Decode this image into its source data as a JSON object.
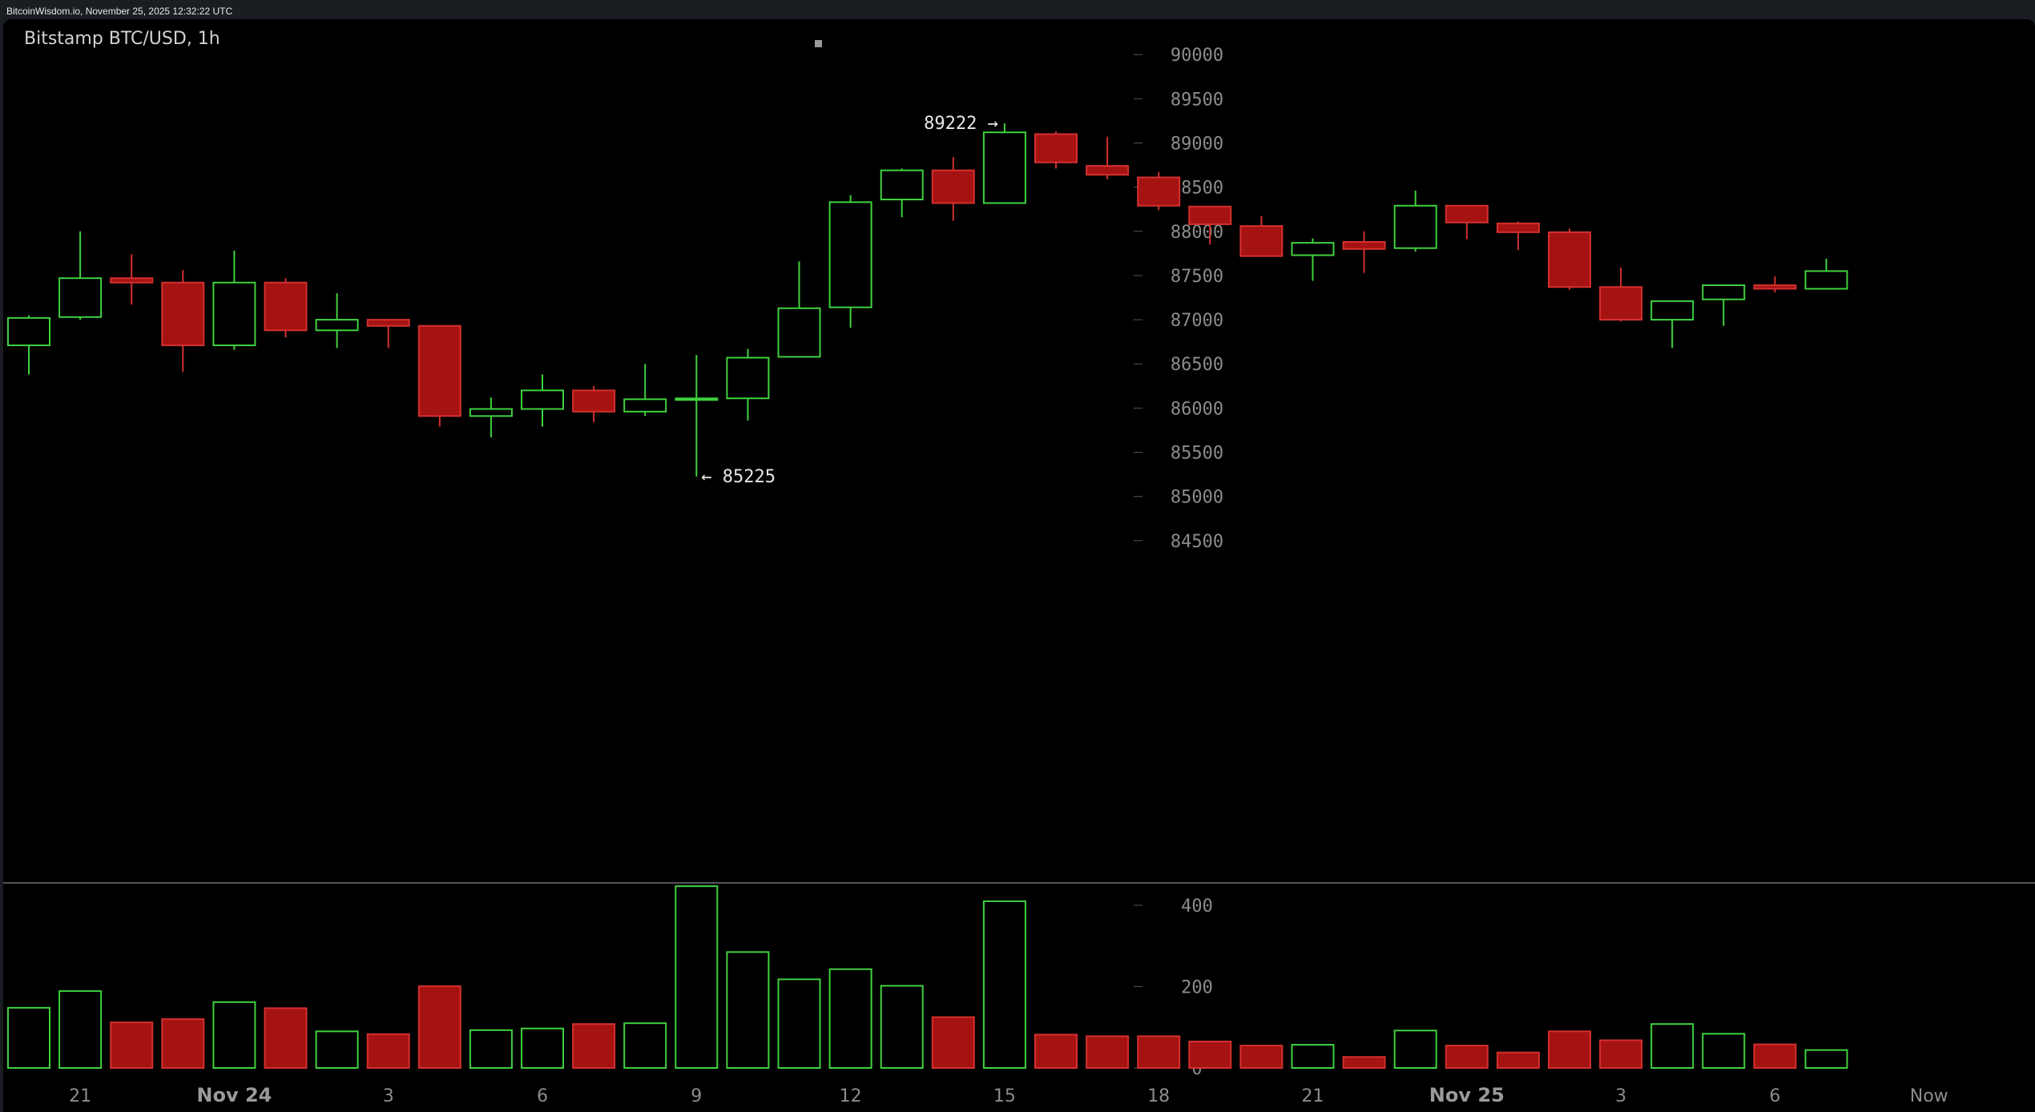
{
  "header": {
    "timestamp": "BitcoinWisdom.io, November 25, 2025 12:32:22 UTC"
  },
  "colors": {
    "background": "#000000",
    "up": "#3fd13f",
    "down": "#a51212",
    "down_edge": "#d43030",
    "axis_text": "#8c8c8c",
    "separator": "#555555"
  },
  "chart_data": {
    "type": "candlestick",
    "title": "Bitstamp BTC/USD, 1h",
    "price_axis": {
      "ylim": [
        84000,
        90400
      ],
      "ticks": [
        84500,
        85000,
        85500,
        86000,
        86500,
        87000,
        87500,
        88000,
        88500,
        89000,
        89500,
        90000
      ],
      "tick_labels": [
        "84500",
        "85000",
        "85500",
        "86000",
        "86500",
        "87000",
        "87500",
        "88000",
        "88500",
        "89000",
        "89500",
        "90000"
      ]
    },
    "volume_axis": {
      "ylim": [
        0,
        470
      ],
      "ticks": [
        0,
        200,
        400
      ],
      "tick_labels": [
        "0",
        "200",
        "400"
      ]
    },
    "x_labels": [
      {
        "at": 1,
        "text": "21",
        "kind": "hour"
      },
      {
        "at": 4,
        "text": "Nov 24",
        "kind": "day"
      },
      {
        "at": 7,
        "text": "3",
        "kind": "hour"
      },
      {
        "at": 10,
        "text": "6",
        "kind": "hour"
      },
      {
        "at": 13,
        "text": "9",
        "kind": "hour"
      },
      {
        "at": 16,
        "text": "12",
        "kind": "hour"
      },
      {
        "at": 19,
        "text": "15",
        "kind": "hour"
      },
      {
        "at": 22,
        "text": "18",
        "kind": "hour"
      },
      {
        "at": 25,
        "text": "21",
        "kind": "hour"
      },
      {
        "at": 28,
        "text": "Nov 25",
        "kind": "day"
      },
      {
        "at": 31,
        "text": "3",
        "kind": "hour"
      },
      {
        "at": 34,
        "text": "6",
        "kind": "hour"
      },
      {
        "at": 37,
        "text": "Now",
        "kind": "now"
      }
    ],
    "candles": [
      {
        "o": 86710,
        "h": 87050,
        "l": 86380,
        "c": 87020,
        "v": 148
      },
      {
        "o": 87030,
        "h": 88000,
        "l": 87000,
        "c": 87470,
        "v": 189
      },
      {
        "o": 87470,
        "h": 87740,
        "l": 87170,
        "c": 87420,
        "v": 112
      },
      {
        "o": 87420,
        "h": 87560,
        "l": 86410,
        "c": 86710,
        "v": 120
      },
      {
        "o": 86710,
        "h": 87780,
        "l": 86660,
        "c": 87420,
        "v": 162
      },
      {
        "o": 87420,
        "h": 87470,
        "l": 86800,
        "c": 86880,
        "v": 147
      },
      {
        "o": 86880,
        "h": 87300,
        "l": 86680,
        "c": 87000,
        "v": 90
      },
      {
        "o": 87000,
        "h": 87000,
        "l": 86680,
        "c": 86930,
        "v": 83
      },
      {
        "o": 86930,
        "h": 86930,
        "l": 85790,
        "c": 85910,
        "v": 201
      },
      {
        "o": 85910,
        "h": 86120,
        "l": 85670,
        "c": 85990,
        "v": 93
      },
      {
        "o": 85990,
        "h": 86380,
        "l": 85790,
        "c": 86200,
        "v": 97
      },
      {
        "o": 86200,
        "h": 86250,
        "l": 85840,
        "c": 85960,
        "v": 108
      },
      {
        "o": 85960,
        "h": 86500,
        "l": 85910,
        "c": 86100,
        "v": 110
      },
      {
        "o": 86100,
        "h": 86600,
        "l": 85225,
        "c": 86110,
        "v": 447
      },
      {
        "o": 86110,
        "h": 86670,
        "l": 85860,
        "c": 86570,
        "v": 285
      },
      {
        "o": 86580,
        "h": 87660,
        "l": 86580,
        "c": 87130,
        "v": 218
      },
      {
        "o": 87140,
        "h": 88410,
        "l": 86910,
        "c": 88330,
        "v": 243
      },
      {
        "o": 88360,
        "h": 88710,
        "l": 88160,
        "c": 88690,
        "v": 202
      },
      {
        "o": 88690,
        "h": 88840,
        "l": 88120,
        "c": 88320,
        "v": 125
      },
      {
        "o": 88320,
        "h": 89222,
        "l": 88320,
        "c": 89120,
        "v": 410
      },
      {
        "o": 89100,
        "h": 89130,
        "l": 88710,
        "c": 88780,
        "v": 82
      },
      {
        "o": 88740,
        "h": 89070,
        "l": 88590,
        "c": 88640,
        "v": 78
      },
      {
        "o": 88610,
        "h": 88670,
        "l": 88240,
        "c": 88290,
        "v": 78
      },
      {
        "o": 88280,
        "h": 88280,
        "l": 87850,
        "c": 88080,
        "v": 65
      },
      {
        "o": 88060,
        "h": 88170,
        "l": 87730,
        "c": 87720,
        "v": 55
      },
      {
        "o": 87730,
        "h": 87920,
        "l": 87440,
        "c": 87870,
        "v": 57
      },
      {
        "o": 87880,
        "h": 88000,
        "l": 87530,
        "c": 87800,
        "v": 27
      },
      {
        "o": 87810,
        "h": 88460,
        "l": 87770,
        "c": 88290,
        "v": 92
      },
      {
        "o": 88290,
        "h": 88290,
        "l": 87910,
        "c": 88100,
        "v": 55
      },
      {
        "o": 88090,
        "h": 88110,
        "l": 87790,
        "c": 87990,
        "v": 38
      },
      {
        "o": 87990,
        "h": 88030,
        "l": 87340,
        "c": 87370,
        "v": 90
      },
      {
        "o": 87370,
        "h": 87590,
        "l": 86980,
        "c": 87000,
        "v": 68
      },
      {
        "o": 87000,
        "h": 87220,
        "l": 86680,
        "c": 87210,
        "v": 108
      },
      {
        "o": 87230,
        "h": 87400,
        "l": 86930,
        "c": 87390,
        "v": 84
      },
      {
        "o": 87390,
        "h": 87490,
        "l": 87310,
        "c": 87350,
        "v": 58
      },
      {
        "o": 87350,
        "h": 87690,
        "l": 87350,
        "c": 87550,
        "v": 44
      }
    ],
    "annotations": [
      {
        "text": "89222 →",
        "at_index": 19,
        "price": 89222,
        "side": "left"
      },
      {
        "text": "← 85225",
        "at_index": 13,
        "price": 85225,
        "side": "right"
      }
    ]
  }
}
